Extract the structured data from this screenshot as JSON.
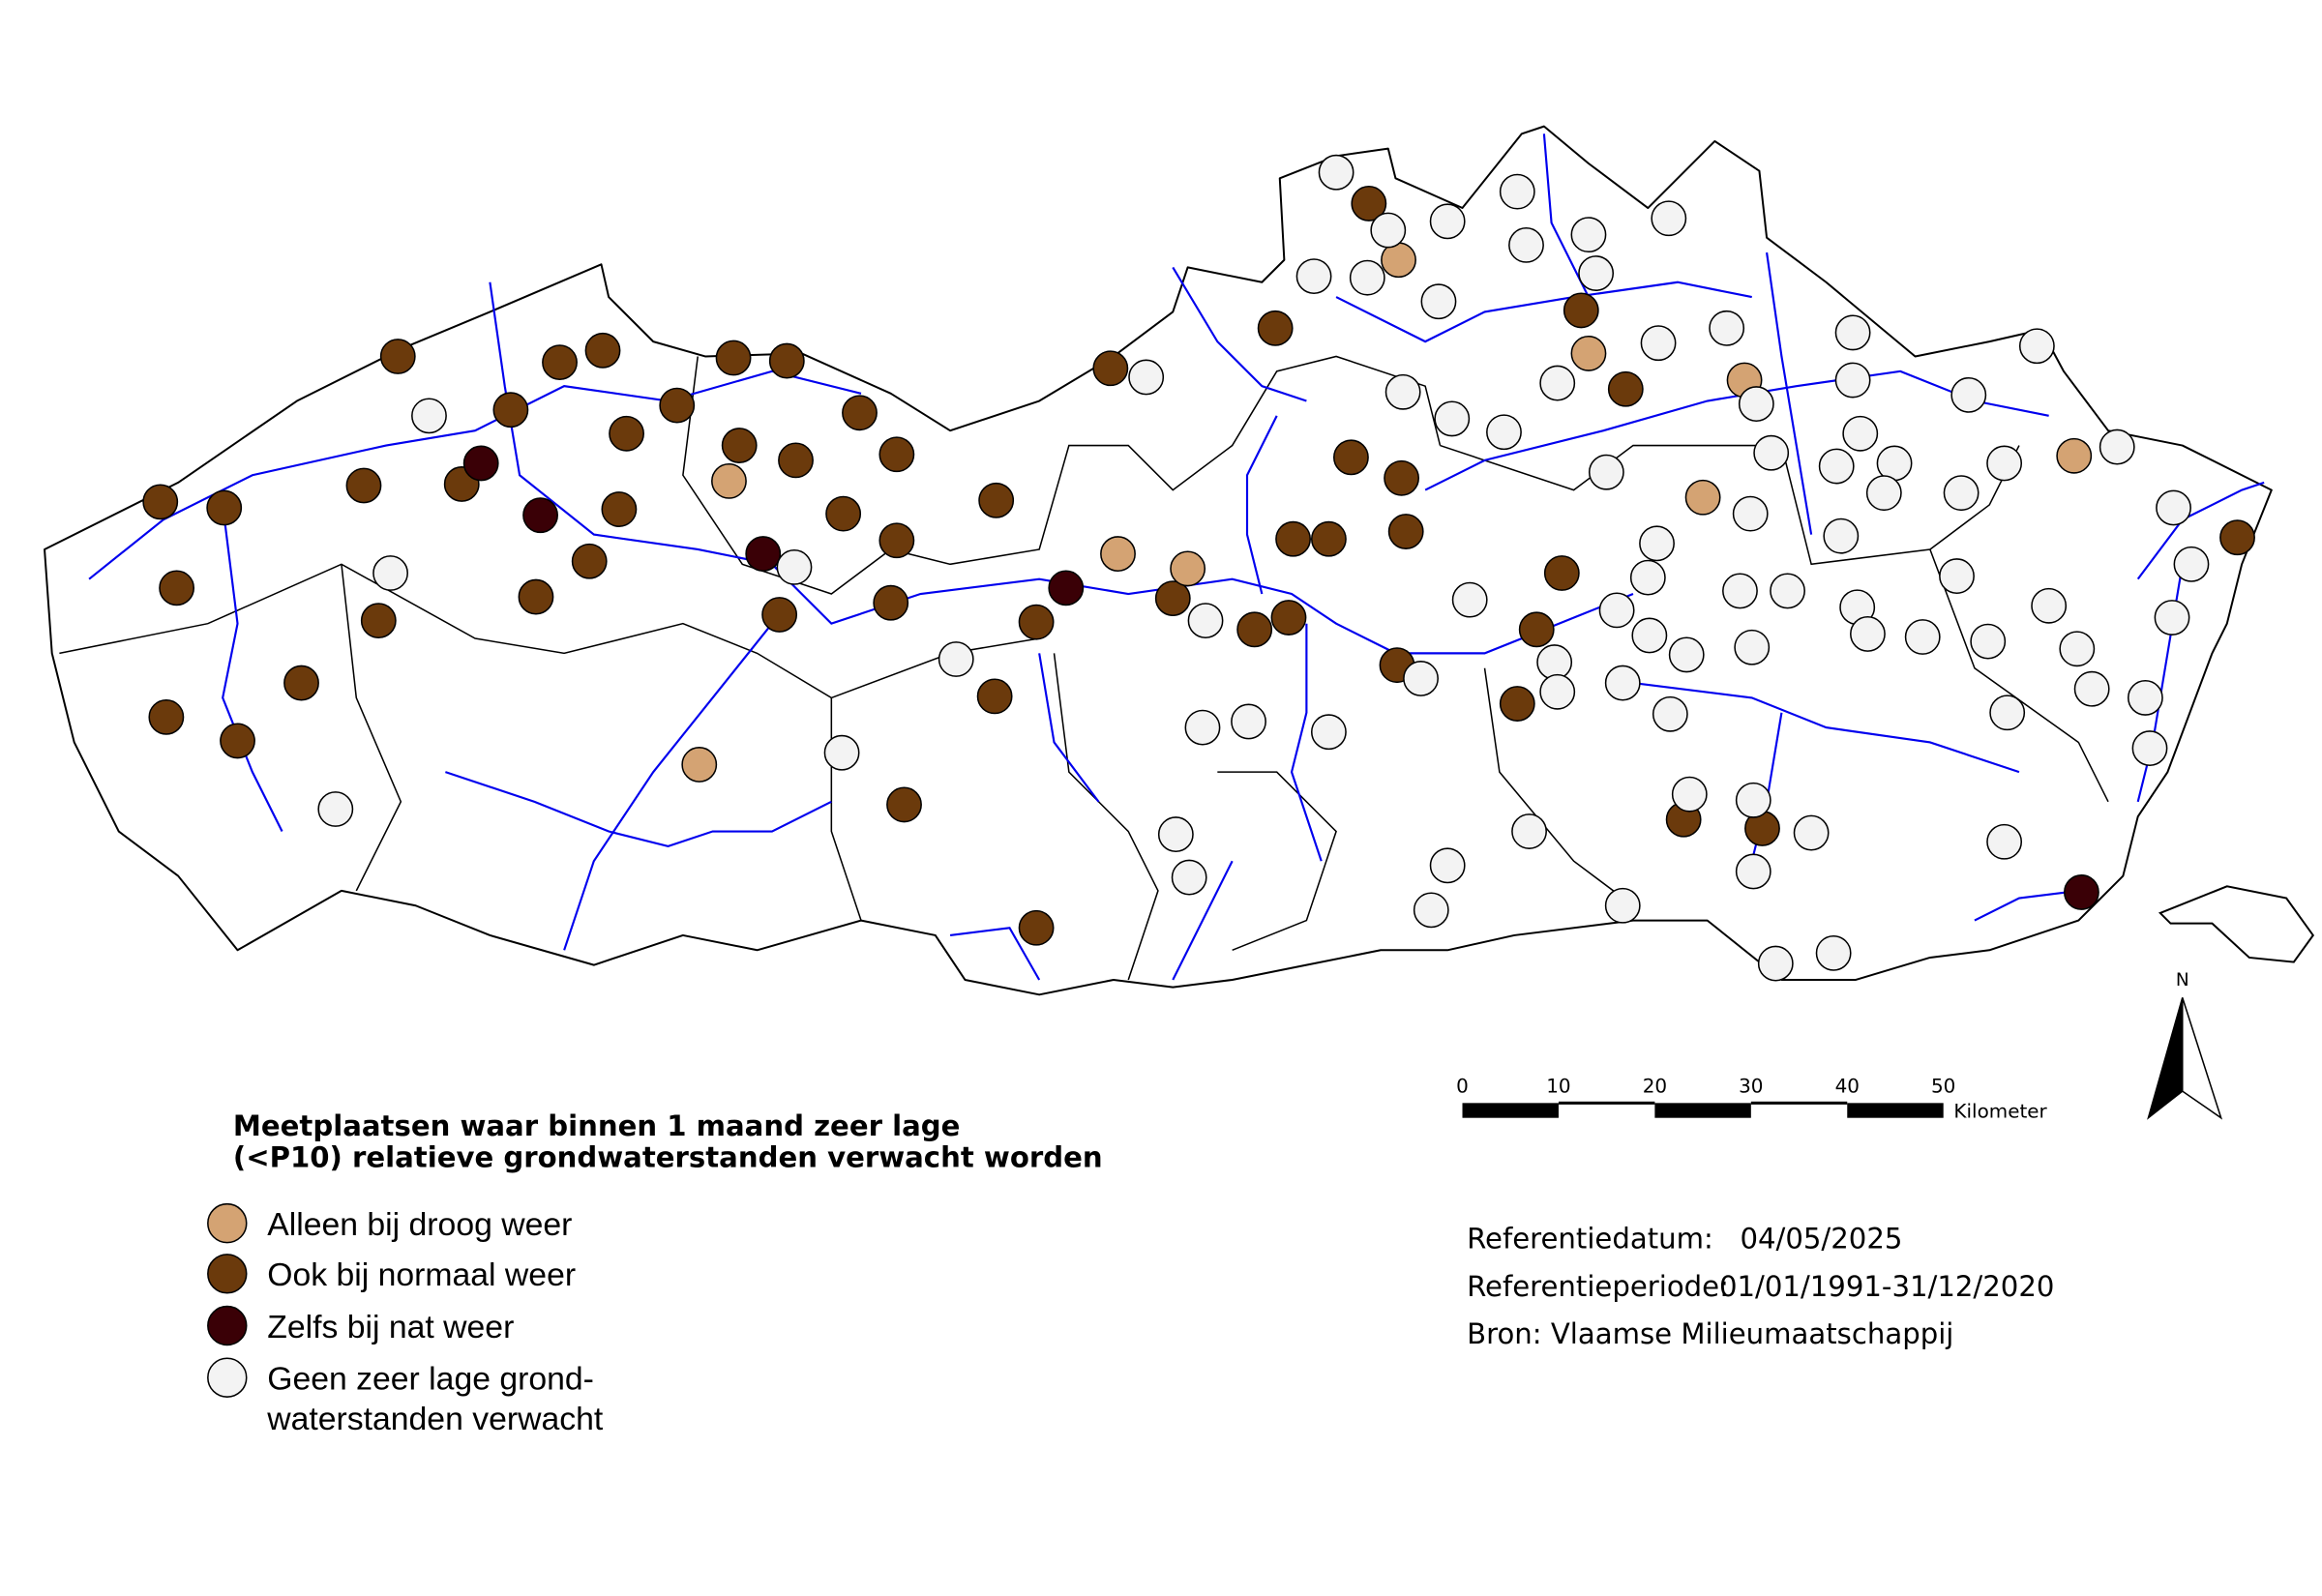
{
  "title": [
    "Meetplaatsen waar binnen 1 maand zeer lage",
    "(<P10) relatieve grondwaterstanden verwacht worden"
  ],
  "legend": [
    {
      "label": [
        "Alleen bij droog weer"
      ],
      "color": "#d4a373"
    },
    {
      "label": [
        "Ook bij normaal weer"
      ],
      "color": "#6b3a0c"
    },
    {
      "label": [
        "Zelfs bij nat weer"
      ],
      "color": "#3a0006"
    },
    {
      "label": [
        "Geen zeer lage grond-",
        "waterstanden verwacht"
      ],
      "color": "#f3f3f3"
    }
  ],
  "scale": {
    "ticks": [
      0,
      10,
      20,
      30,
      40,
      50
    ],
    "unit": "Kilometer"
  },
  "north": "N",
  "info": {
    "reference_date": {
      "label": "Referentiedatum:",
      "value": "04/05/2025"
    },
    "reference_period": {
      "label": "Referentieperiode:",
      "value": "01/01/1991-31/12/2020"
    },
    "source": "Bron: Vlaamse Milieumaatschappij"
  }
}
